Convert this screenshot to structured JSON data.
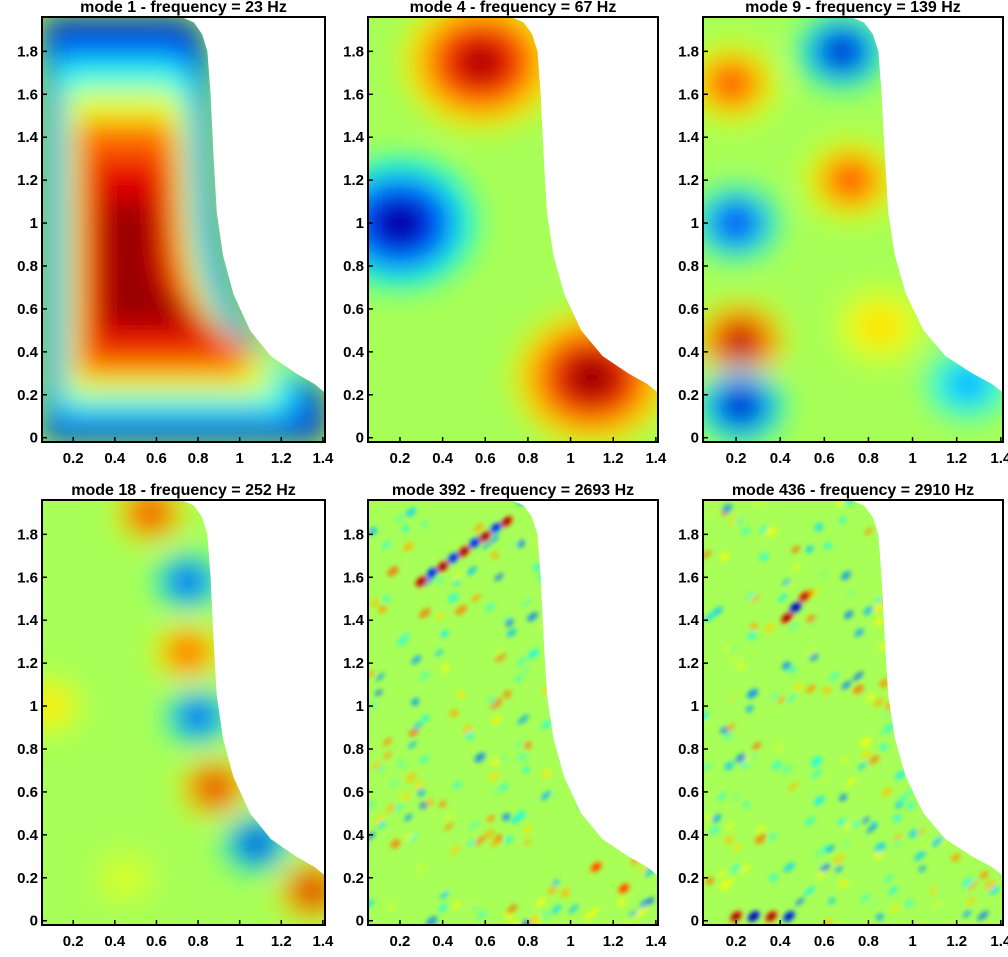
{
  "chart_data": [
    {
      "type": "heatmap",
      "title": "mode 1 - frequency = 23 Hz",
      "mode": 1,
      "frequency_hz": 23,
      "xlim": [
        0.05,
        1.41
      ],
      "ylim": [
        -0.02,
        1.96
      ],
      "xticks": [
        "0.2",
        "0.4",
        "0.6",
        "0.8",
        "1",
        "1.2",
        "1.4"
      ],
      "yticks": [
        "0",
        "0.2",
        "0.4",
        "0.6",
        "0.8",
        "1",
        "1.2",
        "1.4",
        "1.6",
        "1.8"
      ],
      "colormap": "jet",
      "extrema": [
        {
          "x": 0.48,
          "y": 0.65,
          "sign": "positive",
          "strength": 1.0
        }
      ]
    },
    {
      "type": "heatmap",
      "title": "mode 4 - frequency = 67 Hz",
      "mode": 4,
      "frequency_hz": 67,
      "xlim": [
        0.05,
        1.41
      ],
      "ylim": [
        -0.02,
        1.96
      ],
      "xticks": [
        "0.2",
        "0.4",
        "0.6",
        "0.8",
        "1",
        "1.2",
        "1.4"
      ],
      "yticks": [
        "0",
        "0.2",
        "0.4",
        "0.6",
        "0.8",
        "1",
        "1.2",
        "1.4",
        "1.6",
        "1.8"
      ],
      "colormap": "jet",
      "extrema": [
        {
          "x": 0.58,
          "y": 1.75,
          "sign": "positive",
          "strength": 0.95
        },
        {
          "x": 0.2,
          "y": 1.0,
          "sign": "negative",
          "strength": 1.0
        },
        {
          "x": 1.1,
          "y": 0.28,
          "sign": "positive",
          "strength": 1.0
        }
      ]
    },
    {
      "type": "heatmap",
      "title": "mode 9 - frequency = 139 Hz",
      "mode": 9,
      "frequency_hz": 139,
      "xlim": [
        0.05,
        1.41
      ],
      "ylim": [
        -0.02,
        1.96
      ],
      "xticks": [
        "0.2",
        "0.4",
        "0.6",
        "0.8",
        "1",
        "1.2",
        "1.4"
      ],
      "yticks": [
        "0",
        "0.2",
        "0.4",
        "0.6",
        "0.8",
        "1",
        "1.2",
        "1.4",
        "1.6",
        "1.8"
      ],
      "colormap": "jet",
      "extrema": [
        {
          "x": 0.18,
          "y": 1.65,
          "sign": "positive",
          "strength": 0.7
        },
        {
          "x": 0.68,
          "y": 1.8,
          "sign": "negative",
          "strength": 1.0
        },
        {
          "x": 0.72,
          "y": 1.2,
          "sign": "positive",
          "strength": 0.7
        },
        {
          "x": 0.2,
          "y": 1.0,
          "sign": "negative",
          "strength": 0.8
        },
        {
          "x": 0.22,
          "y": 0.45,
          "sign": "positive",
          "strength": 1.0
        },
        {
          "x": 0.85,
          "y": 0.52,
          "sign": "positive",
          "strength": 0.35
        },
        {
          "x": 0.22,
          "y": 0.15,
          "sign": "negative",
          "strength": 1.0
        },
        {
          "x": 1.25,
          "y": 0.25,
          "sign": "negative",
          "strength": 0.5
        }
      ]
    },
    {
      "type": "heatmap",
      "title": "mode 18 - frequency = 252 Hz",
      "mode": 18,
      "frequency_hz": 252,
      "xlim": [
        0.05,
        1.41
      ],
      "ylim": [
        -0.02,
        1.96
      ],
      "xticks": [
        "0.2",
        "0.4",
        "0.6",
        "0.8",
        "1",
        "1.2",
        "1.4"
      ],
      "yticks": [
        "0",
        "0.2",
        "0.4",
        "0.6",
        "0.8",
        "1",
        "1.2",
        "1.4",
        "1.6",
        "1.8"
      ],
      "colormap": "jet",
      "extrema": [
        {
          "x": 0.57,
          "y": 1.9,
          "sign": "positive",
          "strength": 0.9
        },
        {
          "x": 0.75,
          "y": 1.58,
          "sign": "negative",
          "strength": 0.85
        },
        {
          "x": 0.75,
          "y": 1.25,
          "sign": "positive",
          "strength": 0.75
        },
        {
          "x": 0.8,
          "y": 0.95,
          "sign": "negative",
          "strength": 0.85
        },
        {
          "x": 0.88,
          "y": 0.62,
          "sign": "positive",
          "strength": 0.95
        },
        {
          "x": 1.08,
          "y": 0.36,
          "sign": "negative",
          "strength": 1.0
        },
        {
          "x": 1.35,
          "y": 0.14,
          "sign": "positive",
          "strength": 1.0
        },
        {
          "x": 0.08,
          "y": 1.0,
          "sign": "positive",
          "strength": 0.35
        },
        {
          "x": 0.45,
          "y": 0.2,
          "sign": "positive",
          "strength": 0.2
        }
      ]
    },
    {
      "type": "heatmap",
      "title": "mode 392 - frequency = 2693 Hz",
      "mode": 392,
      "frequency_hz": 2693,
      "xlim": [
        0.05,
        1.41
      ],
      "ylim": [
        -0.02,
        1.96
      ],
      "xticks": [
        "0.2",
        "0.4",
        "0.6",
        "0.8",
        "1",
        "1.2",
        "1.4"
      ],
      "yticks": [
        "0",
        "0.2",
        "0.4",
        "0.6",
        "0.8",
        "1",
        "1.2",
        "1.4",
        "1.6",
        "1.8"
      ],
      "colormap": "jet",
      "extrema": [
        {
          "x": 0.3,
          "y": 1.58,
          "sign": "positive",
          "strength": 1.0
        },
        {
          "x": 0.4,
          "y": 1.65,
          "sign": "positive",
          "strength": 1.0
        },
        {
          "x": 0.5,
          "y": 1.72,
          "sign": "positive",
          "strength": 1.0
        },
        {
          "x": 0.6,
          "y": 1.79,
          "sign": "positive",
          "strength": 1.0
        },
        {
          "x": 0.7,
          "y": 1.86,
          "sign": "positive",
          "strength": 1.0
        },
        {
          "x": 0.35,
          "y": 1.62,
          "sign": "negative",
          "strength": 0.8
        },
        {
          "x": 0.45,
          "y": 1.69,
          "sign": "negative",
          "strength": 0.8
        },
        {
          "x": 0.55,
          "y": 1.76,
          "sign": "negative",
          "strength": 0.8
        },
        {
          "x": 0.65,
          "y": 1.83,
          "sign": "negative",
          "strength": 0.8
        },
        {
          "x": 1.12,
          "y": 0.25,
          "sign": "positive",
          "strength": 0.7
        },
        {
          "x": 1.25,
          "y": 0.15,
          "sign": "positive",
          "strength": 0.7
        }
      ]
    },
    {
      "type": "heatmap",
      "title": "mode 436 - frequency = 2910 Hz",
      "mode": 436,
      "frequency_hz": 2910,
      "xlim": [
        0.05,
        1.41
      ],
      "ylim": [
        -0.02,
        1.96
      ],
      "xticks": [
        "0.2",
        "0.4",
        "0.6",
        "0.8",
        "1",
        "1.2",
        "1.4"
      ],
      "yticks": [
        "0",
        "0.2",
        "0.4",
        "0.6",
        "0.8",
        "1",
        "1.2",
        "1.4",
        "1.6",
        "1.8"
      ],
      "colormap": "jet",
      "extrema": [
        {
          "x": 0.43,
          "y": 1.41,
          "sign": "positive",
          "strength": 1.0
        },
        {
          "x": 0.47,
          "y": 1.46,
          "sign": "negative",
          "strength": 1.0
        },
        {
          "x": 0.51,
          "y": 1.51,
          "sign": "positive",
          "strength": 0.9
        },
        {
          "x": 0.2,
          "y": 0.02,
          "sign": "positive",
          "strength": 1.0
        },
        {
          "x": 0.28,
          "y": 0.02,
          "sign": "negative",
          "strength": 1.0
        },
        {
          "x": 0.36,
          "y": 0.02,
          "sign": "positive",
          "strength": 1.0
        },
        {
          "x": 0.44,
          "y": 0.02,
          "sign": "negative",
          "strength": 0.9
        }
      ]
    }
  ]
}
